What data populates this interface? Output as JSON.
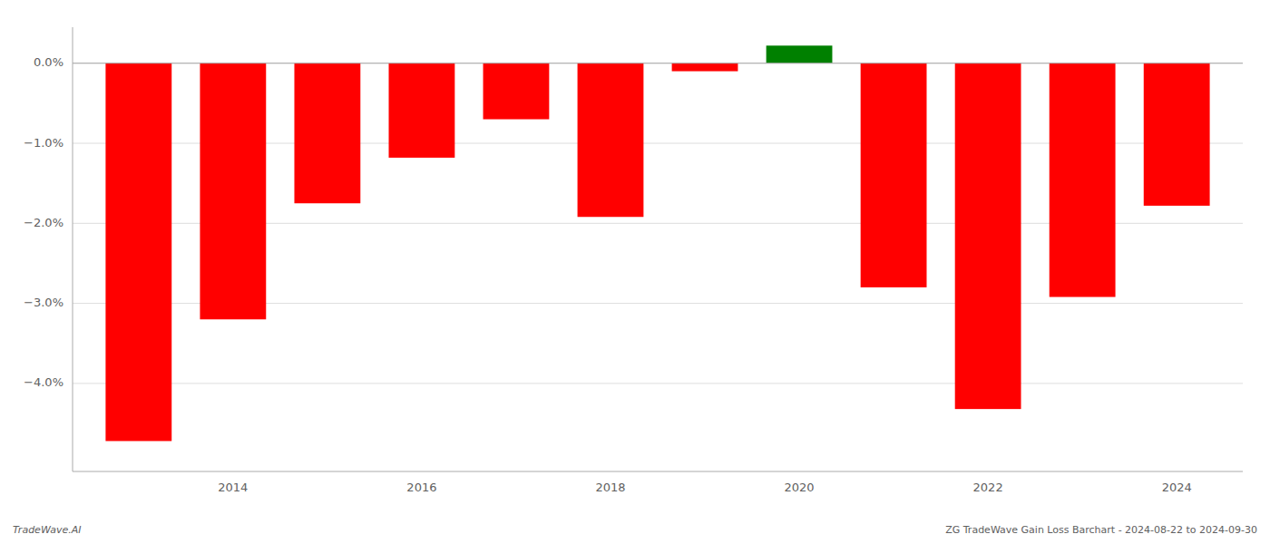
{
  "chart_data": {
    "type": "bar",
    "x": [
      2013,
      2014,
      2015,
      2016,
      2017,
      2018,
      2019,
      2020,
      2021,
      2022,
      2023,
      2024
    ],
    "values": [
      -4.72,
      -3.2,
      -1.75,
      -1.18,
      -0.7,
      -1.92,
      -0.1,
      0.22,
      -2.8,
      -4.32,
      -2.92,
      -1.78
    ],
    "colors": [
      "#ff0000",
      "#ff0000",
      "#ff0000",
      "#ff0000",
      "#ff0000",
      "#ff0000",
      "#ff0000",
      "#008000",
      "#ff0000",
      "#ff0000",
      "#ff0000",
      "#ff0000"
    ],
    "xlim": [
      2012.3,
      2024.7
    ],
    "xticks": [
      2014,
      2016,
      2018,
      2020,
      2022,
      2024
    ],
    "ylim": [
      -5.1,
      0.45
    ],
    "yticks": [
      {
        "value": 0.0,
        "label": "0.0%"
      },
      {
        "value": -1.0,
        "label": "−1.0%"
      },
      {
        "value": -2.0,
        "label": "−2.0%"
      },
      {
        "value": -3.0,
        "label": "−3.0%"
      },
      {
        "value": -4.0,
        "label": "−4.0%"
      }
    ],
    "grid": true,
    "annotations": [
      "TradeWave.AI",
      "ZG TradeWave Gain Loss Barchart - 2024-08-22 to 2024-09-30"
    ]
  }
}
